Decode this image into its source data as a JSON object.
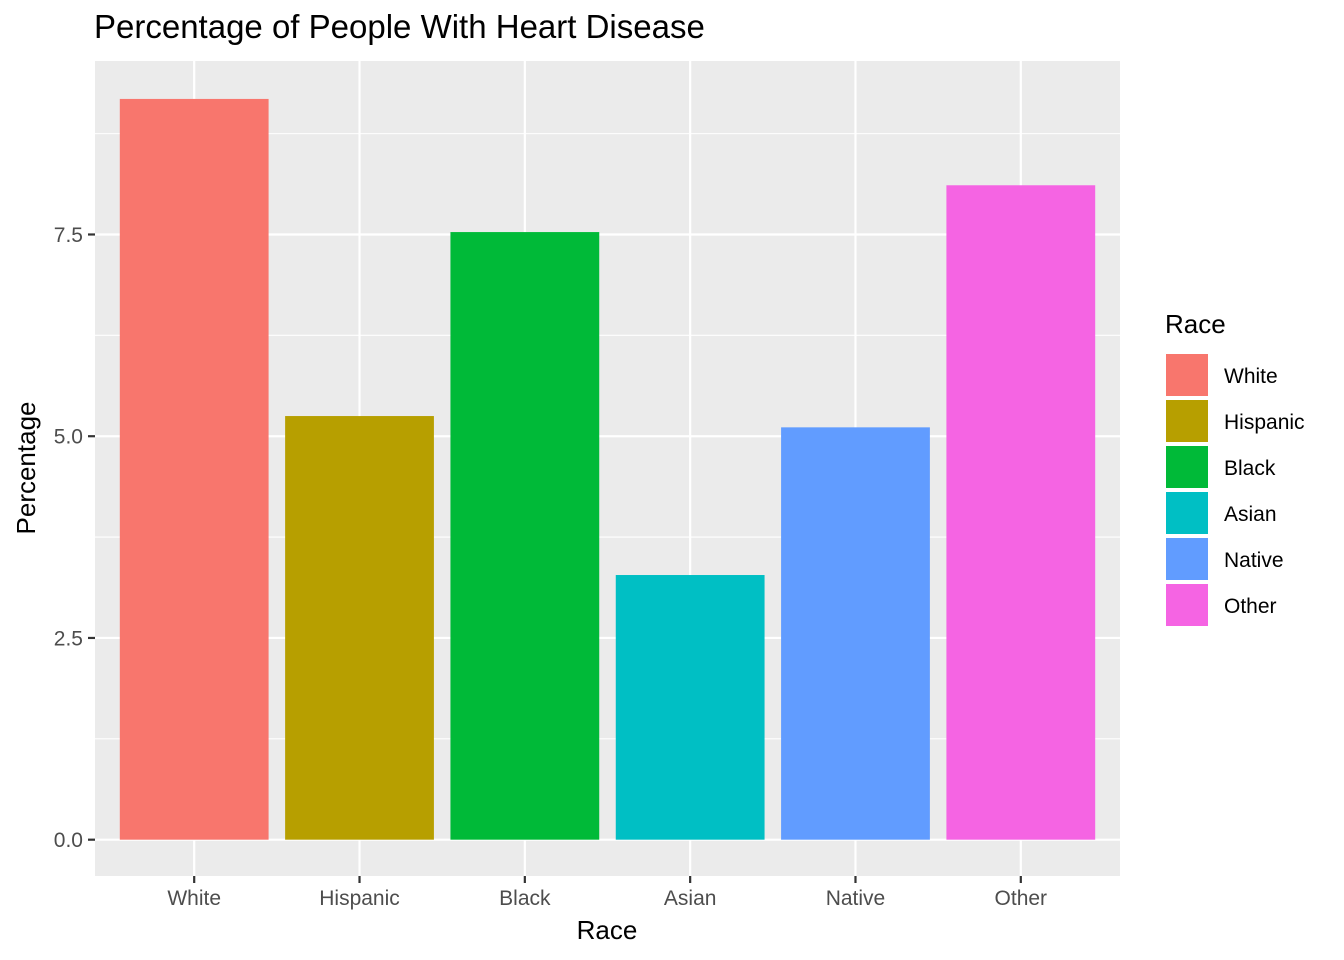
{
  "chart_data": {
    "type": "bar",
    "title": "Percentage of People With Heart Disease",
    "xlabel": "Race",
    "ylabel": "Percentage",
    "categories": [
      "White",
      "Hispanic",
      "Black",
      "Asian",
      "Native",
      "Other"
    ],
    "values": [
      9.18,
      5.25,
      7.53,
      3.28,
      5.11,
      8.11
    ],
    "colors": [
      "#F8766D",
      "#B79F00",
      "#00BA38",
      "#00BFC4",
      "#619CFF",
      "#F564E3"
    ],
    "ylim": [
      -0.45,
      9.65
    ],
    "yticks": [
      {
        "value": 0,
        "label": "0.0"
      },
      {
        "value": 2.5,
        "label": "2.5"
      },
      {
        "value": 5,
        "label": "5.0"
      },
      {
        "value": 7.5,
        "label": "7.5"
      }
    ],
    "grid": true,
    "panel_background": "#EBEBEB",
    "legend": {
      "title": "Race",
      "position": "right",
      "items": [
        "White",
        "Hispanic",
        "Black",
        "Asian",
        "Native",
        "Other"
      ]
    }
  }
}
